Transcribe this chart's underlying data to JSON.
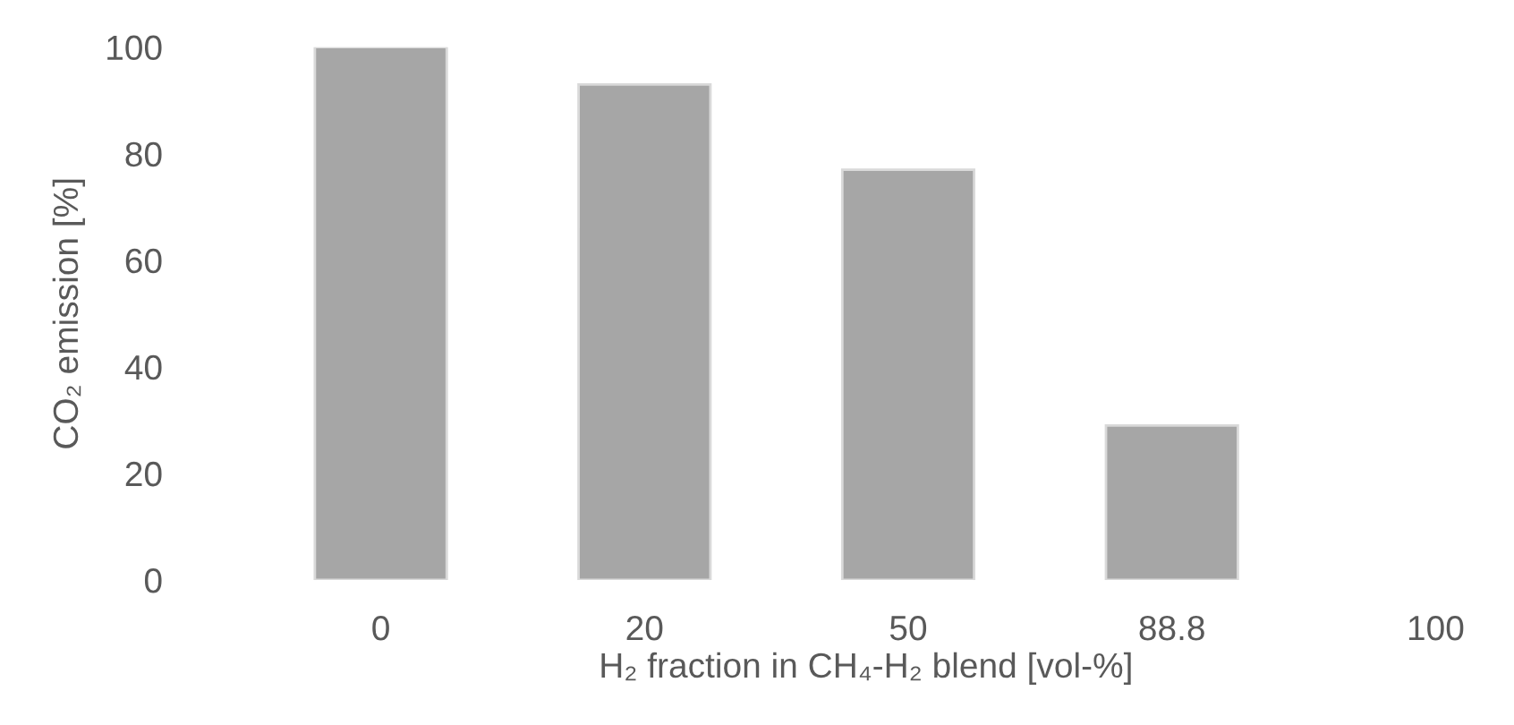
{
  "chart_data": {
    "type": "bar",
    "categories": [
      "0",
      "20",
      "50",
      "88.8",
      "100"
    ],
    "values": [
      100,
      93,
      77,
      29,
      null
    ],
    "color": "#a6a6a6",
    "xlabel": "H₂ fraction in CH₄-H₂ blend [vol-%]",
    "ylabel": "CO₂ emission [%]",
    "ylim": [
      0,
      100
    ],
    "yticks": [
      0,
      20,
      40,
      60,
      80,
      100
    ],
    "grid": false,
    "legend": false
  }
}
